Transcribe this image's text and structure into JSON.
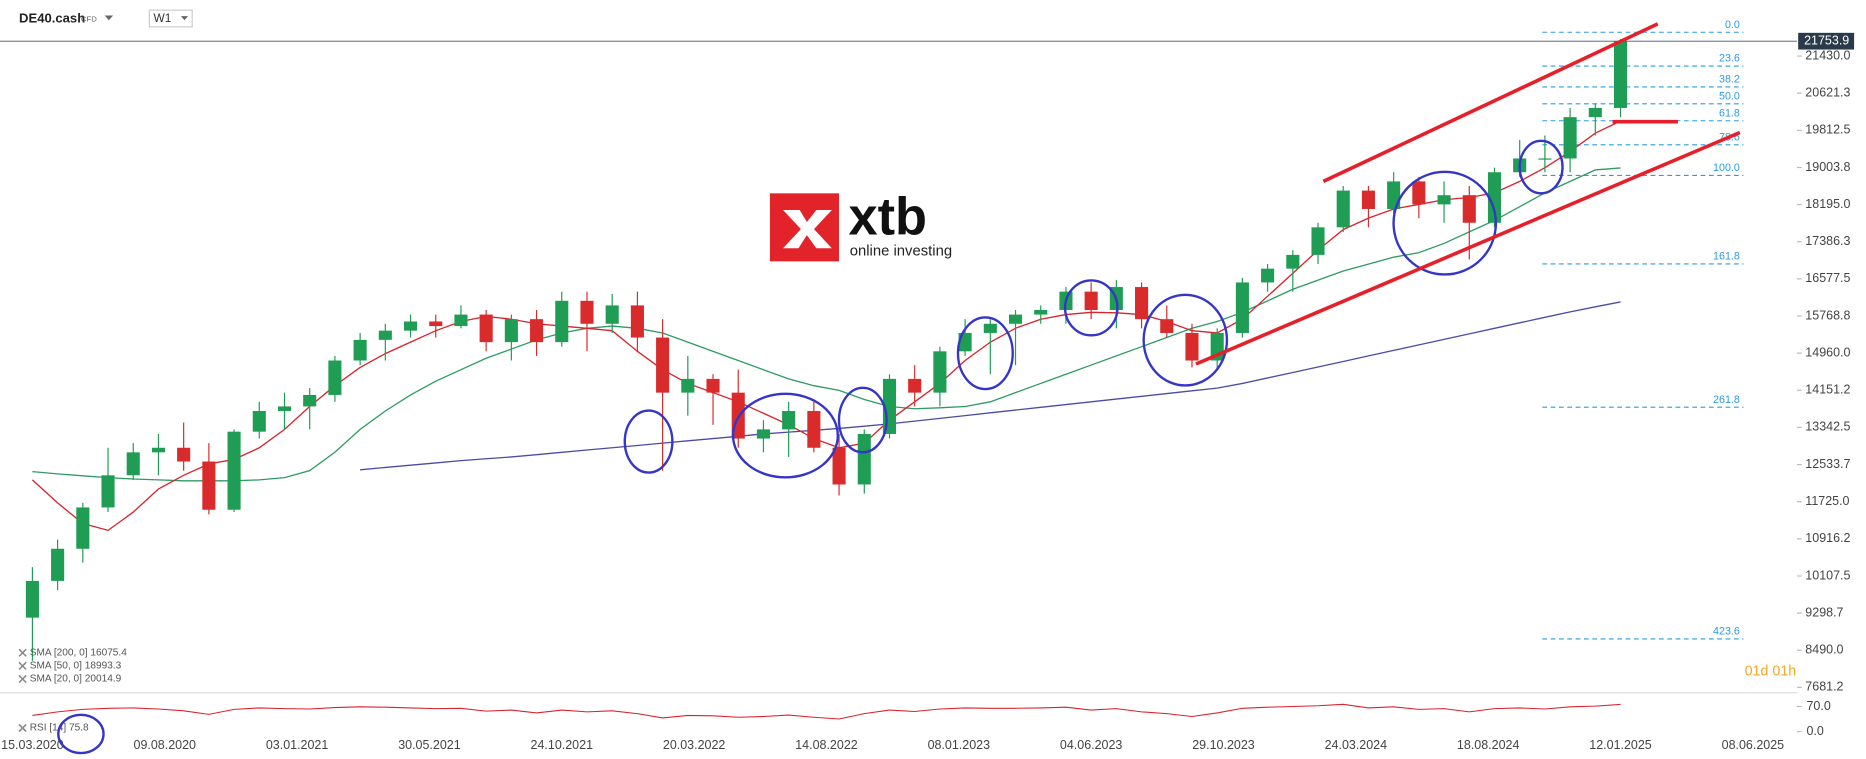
{
  "header": {
    "symbol": "DE40.cash",
    "tag": "CFD",
    "timeframe": "W1"
  },
  "logo": {
    "brand": "xtb",
    "tagline": "online investing"
  },
  "timer": "01d 01h",
  "chart_data": {
    "type": "candlestick",
    "x": [
      "15.03.2020",
      "12.04.2020",
      "10.05.2020",
      "07.06.2020",
      "05.07.2020",
      "02.08.2020",
      "30.08.2020",
      "27.09.2020",
      "25.10.2020",
      "22.11.2020",
      "20.12.2020",
      "17.01.2021",
      "14.02.2021",
      "14.03.2021",
      "11.04.2021",
      "09.05.2021",
      "06.06.2021",
      "04.07.2021",
      "01.08.2021",
      "29.08.2021",
      "26.09.2021",
      "24.10.2021",
      "21.11.2021",
      "19.12.2021",
      "16.01.2022",
      "13.02.2022",
      "13.03.2022",
      "10.04.2022",
      "08.05.2022",
      "05.06.2022",
      "03.07.2022",
      "31.07.2022",
      "28.08.2022",
      "25.09.2022",
      "23.10.2022",
      "20.11.2022",
      "18.12.2022",
      "15.01.2023",
      "12.02.2023",
      "12.03.2023",
      "09.04.2023",
      "07.05.2023",
      "04.06.2023",
      "02.07.2023",
      "30.07.2023",
      "27.08.2023",
      "24.09.2023",
      "22.10.2023",
      "19.11.2023",
      "17.12.2023",
      "14.01.2024",
      "11.02.2024",
      "10.03.2024",
      "07.04.2024",
      "05.05.2024",
      "02.06.2024",
      "30.06.2024",
      "28.07.2024",
      "25.08.2024",
      "22.09.2024",
      "20.10.2024",
      "17.11.2024",
      "15.12.2024",
      "12.01.2025"
    ],
    "ohlc": [
      [
        9200,
        10300,
        8260,
        10000
      ],
      [
        10000,
        10900,
        9800,
        10700
      ],
      [
        10700,
        11700,
        10400,
        11600
      ],
      [
        11600,
        12900,
        11500,
        12300
      ],
      [
        12300,
        13000,
        12200,
        12800
      ],
      [
        12800,
        13200,
        12300,
        12900
      ],
      [
        12900,
        13450,
        12400,
        12600
      ],
      [
        12600,
        13000,
        11450,
        11550
      ],
      [
        11550,
        13300,
        11500,
        13250
      ],
      [
        13250,
        13900,
        13100,
        13700
      ],
      [
        13700,
        14100,
        13300,
        13800
      ],
      [
        13800,
        14200,
        13300,
        14050
      ],
      [
        14050,
        14900,
        13900,
        14800
      ],
      [
        14800,
        15400,
        14700,
        15250
      ],
      [
        15250,
        15600,
        14800,
        15450
      ],
      [
        15450,
        15800,
        15300,
        15650
      ],
      [
        15650,
        15800,
        15300,
        15550
      ],
      [
        15550,
        16000,
        15500,
        15800
      ],
      [
        15800,
        15900,
        15000,
        15200
      ],
      [
        15200,
        15800,
        14800,
        15700
      ],
      [
        15700,
        15900,
        14900,
        15200
      ],
      [
        15200,
        16300,
        15100,
        16100
      ],
      [
        16100,
        16300,
        15000,
        15600
      ],
      [
        15600,
        16250,
        15400,
        16000
      ],
      [
        16000,
        16300,
        15000,
        15300
      ],
      [
        15300,
        15700,
        12400,
        14100
      ],
      [
        14100,
        14900,
        13600,
        14400
      ],
      [
        14400,
        14500,
        13400,
        14100
      ],
      [
        14100,
        14600,
        12900,
        13100
      ],
      [
        13100,
        13500,
        12800,
        13300
      ],
      [
        13300,
        13900,
        12700,
        13700
      ],
      [
        13700,
        13900,
        12800,
        12900
      ],
      [
        12900,
        13200,
        11860,
        12100
      ],
      [
        12100,
        13300,
        11900,
        13200
      ],
      [
        13200,
        14500,
        13100,
        14400
      ],
      [
        14400,
        14700,
        13800,
        14100
      ],
      [
        14100,
        15100,
        13800,
        15000
      ],
      [
        15000,
        15700,
        14900,
        15400
      ],
      [
        15400,
        15700,
        14500,
        15600
      ],
      [
        15600,
        15900,
        14700,
        15800
      ],
      [
        15800,
        16000,
        15600,
        15900
      ],
      [
        15900,
        16400,
        15600,
        16300
      ],
      [
        16300,
        16500,
        15700,
        15900
      ],
      [
        15900,
        16550,
        15500,
        16400
      ],
      [
        16400,
        16500,
        15500,
        15700
      ],
      [
        15700,
        16000,
        15300,
        15400
      ],
      [
        15400,
        15600,
        14650,
        14800
      ],
      [
        14800,
        15500,
        14600,
        15400
      ],
      [
        15400,
        16600,
        15300,
        16500
      ],
      [
        16500,
        16900,
        16300,
        16800
      ],
      [
        16800,
        17200,
        16300,
        17100
      ],
      [
        17100,
        17800,
        16900,
        17700
      ],
      [
        17700,
        18600,
        17600,
        18500
      ],
      [
        18500,
        18600,
        17700,
        18100
      ],
      [
        18100,
        18900,
        18000,
        18700
      ],
      [
        18700,
        18800,
        17900,
        18200
      ],
      [
        18200,
        18700,
        17800,
        18400
      ],
      [
        18400,
        18600,
        17000,
        17800
      ],
      [
        17800,
        19000,
        17700,
        18900
      ],
      [
        18900,
        19600,
        18800,
        19200
      ],
      [
        19200,
        19700,
        18900,
        19200
      ],
      [
        19200,
        20300,
        18900,
        20100
      ],
      [
        20100,
        20400,
        19700,
        20300
      ],
      [
        20300,
        21800,
        20100,
        21753.9
      ]
    ],
    "up_color": "#1f9d55",
    "down_color": "#d92b2b",
    "series": [
      {
        "name": "SMA [200, 0] 16075.4",
        "color": "#4b4ba8",
        "values": [
          null,
          null,
          null,
          null,
          null,
          null,
          null,
          null,
          null,
          null,
          null,
          null,
          null,
          12420,
          12470,
          12520,
          12570,
          12620,
          12660,
          12700,
          12750,
          12800,
          12850,
          12900,
          12950,
          13000,
          13050,
          13100,
          13150,
          13200,
          13240,
          13280,
          13320,
          13370,
          13420,
          13480,
          13540,
          13600,
          13660,
          13720,
          13780,
          13840,
          13900,
          13960,
          14020,
          14080,
          14140,
          14200,
          14300,
          14420,
          14540,
          14660,
          14780,
          14900,
          15020,
          15140,
          15260,
          15380,
          15500,
          15620,
          15740,
          15860,
          15970,
          16075
        ]
      },
      {
        "name": "SMA [50, 0] 18993.3",
        "color": "#2e9b63",
        "values": [
          12380,
          12330,
          12290,
          12250,
          12220,
          12200,
          12180,
          12180,
          12180,
          12200,
          12250,
          12400,
          12800,
          13300,
          13700,
          14050,
          14350,
          14600,
          14850,
          15050,
          15250,
          15400,
          15500,
          15550,
          15500,
          15400,
          15200,
          15000,
          14800,
          14600,
          14400,
          14250,
          14150,
          13950,
          13800,
          13750,
          13770,
          13800,
          13900,
          14100,
          14300,
          14500,
          14700,
          14900,
          15100,
          15300,
          15500,
          15650,
          15850,
          16100,
          16350,
          16550,
          16750,
          16900,
          17050,
          17150,
          17350,
          17600,
          17850,
          18150,
          18450,
          18700,
          18950,
          18993
        ]
      },
      {
        "name": "SMA [20, 0] 20014.9",
        "color": "#d9232d",
        "values": [
          12200,
          11700,
          11250,
          11100,
          11500,
          12000,
          12300,
          12550,
          12645,
          12900,
          13300,
          13800,
          14250,
          14650,
          14950,
          15200,
          15450,
          15650,
          15760,
          15700,
          15600,
          15550,
          15500,
          15450,
          15000,
          14600,
          14300,
          14100,
          13900,
          13650,
          13400,
          13100,
          12900,
          13000,
          13500,
          13900,
          14300,
          14800,
          15200,
          15500,
          15700,
          15800,
          15850,
          15840,
          15800,
          15650,
          15450,
          15400,
          15700,
          16200,
          16700,
          17200,
          17650,
          17900,
          18100,
          18200,
          18300,
          18350,
          18450,
          18700,
          19000,
          19350,
          19750,
          20015
        ]
      }
    ],
    "last_price": 21753.9,
    "ylim": [
      7577,
      22651
    ],
    "yticks": [
      {
        "value": 21430,
        "label": "21430.0"
      },
      {
        "value": 20621.3,
        "label": "20621.3"
      },
      {
        "value": 19812.5,
        "label": "19812.5"
      },
      {
        "value": 19003.8,
        "label": "19003.8"
      },
      {
        "value": 18195,
        "label": "18195.0"
      },
      {
        "value": 17386.3,
        "label": "17386.3"
      },
      {
        "value": 16577.5,
        "label": "16577.5"
      },
      {
        "value": 15768.8,
        "label": "15768.8"
      },
      {
        "value": 14960,
        "label": "14960.0"
      },
      {
        "value": 14151.2,
        "label": "14151.2"
      },
      {
        "value": 13342.5,
        "label": "13342.5"
      },
      {
        "value": 12533.7,
        "label": "12533.7"
      },
      {
        "value": 11725,
        "label": "11725.0"
      },
      {
        "value": 10916.2,
        "label": "10916.2"
      },
      {
        "value": 10107.5,
        "label": "10107.5"
      },
      {
        "value": 9298.7,
        "label": "9298.7"
      },
      {
        "value": 8490,
        "label": "8490.0"
      },
      {
        "value": 7681.2,
        "label": "7681.2"
      }
    ],
    "xlim": [
      "08.02.2020",
      "27.07.2025"
    ],
    "xticks": [
      "15.03.2020",
      "09.08.2020",
      "03.01.2021",
      "30.05.2021",
      "24.10.2021",
      "20.03.2022",
      "14.08.2022",
      "08.01.2023",
      "04.06.2023",
      "29.10.2023",
      "24.03.2024",
      "18.08.2024",
      "12.01.2025",
      "08.06.2025"
    ],
    "fib": {
      "high": 21949,
      "low": 18830,
      "color": "#2d9be0",
      "levels": [
        {
          "value": 0,
          "label": "0.0"
        },
        23.6,
        38.2,
        {
          "value": 50,
          "label": "50.0"
        },
        61.8,
        78.6,
        {
          "value": 100,
          "label": "100.0"
        },
        161.8,
        261.8,
        423.6
      ]
    },
    "rsi": {
      "name": "RSI [14] 75.8",
      "color": "#d9232d",
      "values": [
        45,
        55,
        62,
        65,
        66,
        63,
        58,
        48,
        62,
        66,
        64,
        63,
        67,
        69,
        68,
        66,
        64,
        65,
        57,
        60,
        52,
        60,
        55,
        58,
        50,
        38,
        45,
        44,
        40,
        42,
        46,
        40,
        35,
        50,
        60,
        56,
        63,
        66,
        65,
        65,
        66,
        68,
        60,
        64,
        55,
        50,
        42,
        52,
        65,
        68,
        70,
        72,
        76,
        66,
        69,
        62,
        64,
        55,
        64,
        66,
        63,
        69,
        71,
        75.8
      ],
      "ylim": [
        -40,
        110
      ],
      "yticks": [
        {
          "value": 70,
          "label": "70.0"
        },
        {
          "value": 0,
          "label": "0.0"
        }
      ]
    }
  }
}
